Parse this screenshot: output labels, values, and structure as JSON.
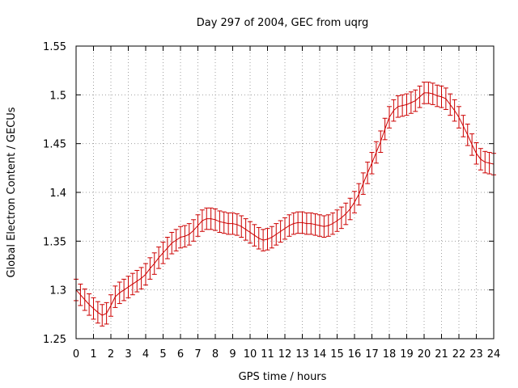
{
  "chart_data": {
    "type": "line",
    "title": "Day 297 of 2004, GEC from uqrg",
    "xlabel": "GPS time / hours",
    "ylabel": "Global Electron Content / GECUs",
    "xlim": [
      0,
      24
    ],
    "ylim": [
      1.25,
      1.55
    ],
    "grid": true,
    "xticks": [
      "0",
      "1",
      "2",
      "3",
      "4",
      "5",
      "6",
      "7",
      "8",
      "9",
      "10",
      "11",
      "12",
      "13",
      "14",
      "15",
      "16",
      "17",
      "18",
      "19",
      "20",
      "21",
      "22",
      "23",
      "24"
    ],
    "yticks": [
      "1.25",
      "1.3",
      "1.35",
      "1.4",
      "1.45",
      "1.5",
      "1.55"
    ],
    "error_bar": 0.011,
    "series_color": "#cc0000",
    "series": [
      {
        "x": [
          0,
          0.25,
          0.5,
          0.75,
          1,
          1.25,
          1.5,
          1.75,
          2,
          2.25,
          2.5,
          2.75,
          3,
          3.25,
          3.5,
          3.75,
          4,
          4.25,
          4.5,
          4.75,
          5,
          5.25,
          5.5,
          5.75,
          6,
          6.25,
          6.5,
          6.75,
          7,
          7.25,
          7.5,
          7.75,
          8,
          8.25,
          8.5,
          8.75,
          9,
          9.25,
          9.5,
          9.75,
          10,
          10.25,
          10.5,
          10.75,
          11,
          11.25,
          11.5,
          11.75,
          12,
          12.25,
          12.5,
          12.75,
          13,
          13.25,
          13.5,
          13.75,
          14,
          14.25,
          14.5,
          14.75,
          15,
          15.25,
          15.5,
          15.75,
          16,
          16.25,
          16.5,
          16.75,
          17,
          17.25,
          17.5,
          17.75,
          18,
          18.25,
          18.5,
          18.75,
          19,
          19.25,
          19.5,
          19.75,
          20,
          20.25,
          20.5,
          20.75,
          21,
          21.25,
          21.5,
          21.75,
          22,
          22.25,
          22.5,
          22.75,
          23,
          23.25,
          23.5,
          23.75,
          24
        ],
        "y": [
          1.3,
          1.295,
          1.29,
          1.285,
          1.281,
          1.277,
          1.274,
          1.276,
          1.284,
          1.293,
          1.297,
          1.3,
          1.303,
          1.306,
          1.309,
          1.312,
          1.316,
          1.322,
          1.327,
          1.333,
          1.338,
          1.343,
          1.348,
          1.351,
          1.354,
          1.355,
          1.357,
          1.361,
          1.366,
          1.371,
          1.373,
          1.373,
          1.372,
          1.37,
          1.369,
          1.368,
          1.368,
          1.367,
          1.365,
          1.362,
          1.359,
          1.356,
          1.353,
          1.351,
          1.352,
          1.354,
          1.357,
          1.36,
          1.363,
          1.366,
          1.368,
          1.369,
          1.369,
          1.368,
          1.368,
          1.367,
          1.366,
          1.365,
          1.366,
          1.368,
          1.371,
          1.374,
          1.378,
          1.383,
          1.39,
          1.398,
          1.409,
          1.42,
          1.43,
          1.441,
          1.452,
          1.465,
          1.477,
          1.484,
          1.488,
          1.489,
          1.49,
          1.492,
          1.494,
          1.498,
          1.502,
          1.502,
          1.501,
          1.499,
          1.498,
          1.496,
          1.49,
          1.484,
          1.477,
          1.468,
          1.459,
          1.449,
          1.44,
          1.434,
          1.431,
          1.43,
          1.429
        ]
      }
    ]
  }
}
